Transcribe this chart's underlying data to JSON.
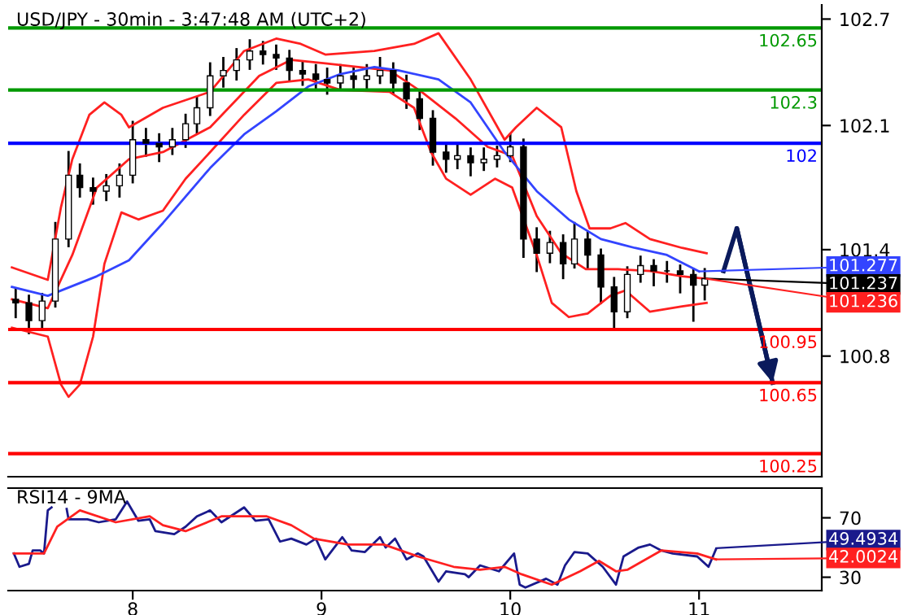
{
  "chart_data": [
    {
      "type": "candlestick",
      "title": "USD/JPY - 30min - 3:47:48 AM (UTC+2)",
      "color": "#000000",
      "x": [
        7.38,
        7.45,
        7.52,
        7.59,
        7.66,
        7.72,
        7.79,
        7.86,
        7.93,
        8.0,
        8.07,
        8.14,
        8.21,
        8.28,
        8.34,
        8.41,
        8.48,
        8.55,
        8.62,
        8.69,
        8.76,
        8.83,
        8.9,
        8.97,
        9.03,
        9.1,
        9.17,
        9.24,
        9.31,
        9.38,
        9.45,
        9.52,
        9.59,
        9.66,
        9.72,
        9.79,
        9.86,
        9.93,
        10.0,
        10.07,
        10.14,
        10.21,
        10.28,
        10.34,
        10.41,
        10.48,
        10.55,
        10.62,
        10.69,
        10.76,
        10.83,
        10.9,
        10.97,
        11.03
      ],
      "ohlc": [
        [
          101.12,
          101.18,
          101.02,
          101.1
        ],
        [
          101.1,
          101.14,
          100.93,
          101.0
        ],
        [
          101.0,
          101.15,
          100.96,
          101.11
        ],
        [
          101.11,
          101.55,
          101.08,
          101.46
        ],
        [
          101.46,
          101.95,
          101.42,
          101.82
        ],
        [
          101.82,
          101.88,
          101.7,
          101.75
        ],
        [
          101.75,
          101.8,
          101.66,
          101.73
        ],
        [
          101.73,
          101.82,
          101.68,
          101.76
        ],
        [
          101.76,
          101.88,
          101.7,
          101.82
        ],
        [
          101.82,
          102.12,
          101.78,
          102.02
        ],
        [
          102.02,
          102.08,
          101.93,
          102.0
        ],
        [
          102.0,
          102.05,
          101.9,
          101.98
        ],
        [
          101.98,
          102.08,
          101.94,
          102.02
        ],
        [
          102.02,
          102.16,
          101.98,
          102.11
        ],
        [
          102.11,
          102.26,
          102.06,
          102.2
        ],
        [
          102.2,
          102.45,
          102.16,
          102.38
        ],
        [
          102.38,
          102.48,
          102.32,
          102.41
        ],
        [
          102.41,
          102.53,
          102.36,
          102.47
        ],
        [
          102.47,
          102.58,
          102.42,
          102.52
        ],
        [
          102.52,
          102.57,
          102.45,
          102.5
        ],
        [
          102.5,
          102.55,
          102.42,
          102.48
        ],
        [
          102.48,
          102.52,
          102.36,
          102.41
        ],
        [
          102.41,
          102.46,
          102.33,
          102.39
        ],
        [
          102.39,
          102.44,
          102.3,
          102.36
        ],
        [
          102.36,
          102.42,
          102.28,
          102.34
        ],
        [
          102.34,
          102.44,
          102.3,
          102.38
        ],
        [
          102.38,
          102.42,
          102.3,
          102.36
        ],
        [
          102.36,
          102.44,
          102.31,
          102.38
        ],
        [
          102.38,
          102.48,
          102.34,
          102.41
        ],
        [
          102.41,
          102.45,
          102.28,
          102.34
        ],
        [
          102.34,
          102.38,
          102.2,
          102.25
        ],
        [
          102.25,
          102.3,
          102.08,
          102.14
        ],
        [
          102.14,
          102.18,
          101.88,
          101.95
        ],
        [
          101.95,
          102.0,
          101.84,
          101.91
        ],
        [
          101.91,
          101.99,
          101.86,
          101.93
        ],
        [
          101.93,
          101.97,
          101.82,
          101.89
        ],
        [
          101.89,
          101.97,
          101.85,
          101.91
        ],
        [
          101.91,
          101.98,
          101.87,
          101.93
        ],
        [
          101.93,
          102.05,
          101.9,
          101.98
        ],
        [
          101.98,
          102.02,
          101.36,
          101.46
        ],
        [
          101.46,
          101.52,
          101.28,
          101.38
        ],
        [
          101.38,
          101.5,
          101.33,
          101.44
        ],
        [
          101.44,
          101.48,
          101.24,
          101.32
        ],
        [
          101.32,
          101.55,
          101.3,
          101.46
        ],
        [
          101.46,
          101.5,
          101.3,
          101.37
        ],
        [
          101.37,
          101.4,
          101.1,
          101.19
        ],
        [
          101.19,
          101.24,
          100.95,
          101.05
        ],
        [
          101.05,
          101.3,
          101.02,
          101.26
        ],
        [
          101.26,
          101.36,
          101.22,
          101.31
        ],
        [
          101.31,
          101.34,
          101.2,
          101.28
        ],
        [
          101.28,
          101.33,
          101.22,
          101.28
        ],
        [
          101.28,
          101.31,
          101.16,
          101.26
        ],
        [
          101.26,
          101.29,
          101.0,
          101.2
        ],
        [
          101.2,
          101.29,
          101.12,
          101.237
        ]
      ],
      "series": [
        {
          "type": "line",
          "color": "#ff2020",
          "x": [
            7.36,
            7.55,
            7.62,
            7.68,
            7.77,
            7.85,
            7.94,
            7.98,
            8.16,
            8.41,
            8.59,
            8.76,
            8.89,
            9.02,
            9.28,
            9.49,
            9.62,
            9.79,
            9.97,
            10.03,
            10.14,
            10.27,
            10.35,
            10.42,
            10.53,
            10.61,
            10.74,
            10.91,
            11.04
          ],
          "values": [
            101.3,
            101.23,
            101.64,
            101.91,
            102.16,
            102.23,
            102.16,
            102.09,
            102.2,
            102.29,
            102.52,
            102.59,
            102.56,
            102.5,
            102.52,
            102.56,
            102.62,
            102.36,
            102.02,
            102.09,
            102.2,
            102.09,
            101.73,
            101.52,
            101.52,
            101.55,
            101.46,
            101.41,
            101.38
          ]
        },
        {
          "type": "line",
          "color": "#ff2020",
          "x": [
            7.36,
            7.55,
            7.62,
            7.66,
            7.72,
            7.79,
            7.85,
            7.94,
            8.03,
            8.16,
            8.28,
            8.41,
            8.59,
            8.76,
            8.93,
            9.1,
            9.36,
            9.49,
            9.58,
            9.66,
            9.79,
            9.92,
            10.01,
            10.14,
            10.22,
            10.31,
            10.41,
            10.53,
            10.61,
            10.74,
            10.91,
            11.04
          ],
          "values": [
            100.96,
            100.91,
            100.64,
            100.57,
            100.64,
            100.91,
            101.32,
            101.61,
            101.57,
            101.62,
            101.8,
            101.95,
            102.16,
            102.34,
            102.36,
            102.3,
            102.29,
            102.2,
            101.95,
            101.8,
            101.71,
            101.8,
            101.75,
            101.37,
            101.1,
            101.02,
            101.04,
            101.14,
            101.17,
            101.05,
            101.08,
            101.1
          ]
        },
        {
          "type": "line",
          "color": "#ff2020",
          "x": [
            7.36,
            7.55,
            7.68,
            7.81,
            7.98,
            8.16,
            8.41,
            8.67,
            8.84,
            9.02,
            9.36,
            9.53,
            9.71,
            9.88,
            10.01,
            10.14,
            10.27,
            10.4,
            10.57,
            10.74,
            10.91,
            11.04
          ],
          "values": [
            101.12,
            101.07,
            101.37,
            101.75,
            101.91,
            101.95,
            102.09,
            102.38,
            102.47,
            102.45,
            102.41,
            102.29,
            102.14,
            101.98,
            101.93,
            101.59,
            101.38,
            101.29,
            101.29,
            101.28,
            101.25,
            101.236
          ]
        },
        {
          "type": "line",
          "color": "#3344ff",
          "x": [
            7.36,
            7.55,
            7.81,
            7.98,
            8.16,
            8.41,
            8.59,
            8.76,
            8.93,
            9.1,
            9.28,
            9.41,
            9.62,
            9.79,
            9.97,
            10.14,
            10.31,
            10.48,
            10.66,
            10.83,
            11.0
          ],
          "values": [
            101.19,
            101.14,
            101.25,
            101.34,
            101.55,
            101.86,
            102.05,
            102.18,
            102.32,
            102.39,
            102.43,
            102.41,
            102.36,
            102.23,
            101.95,
            101.73,
            101.57,
            101.46,
            101.41,
            101.37,
            101.277
          ]
        },
        {
          "type": "line",
          "color": "#0a1a5c",
          "x": [
            11.13,
            11.2,
            11.39
          ],
          "values": [
            101.28,
            101.52,
            100.65
          ]
        }
      ],
      "ref_lines": [
        {
          "axis": "y",
          "value": 102.65,
          "label": "102.65",
          "color": "#009900"
        },
        {
          "axis": "y",
          "value": 102.3,
          "label": "102.3",
          "color": "#009900"
        },
        {
          "axis": "y",
          "value": 102,
          "label": "102",
          "color": "#0000ff"
        },
        {
          "axis": "y",
          "value": 100.95,
          "label": "100.95",
          "color": "#ff0000"
        },
        {
          "axis": "y",
          "value": 100.65,
          "label": "100.65",
          "color": "#ff0000"
        },
        {
          "axis": "y",
          "value": 100.25,
          "label": "100.25",
          "color": "#ff0000"
        }
      ],
      "annotations": [
        {
          "text": "101.277",
          "x": 11.0,
          "y": 101.277
        },
        {
          "text": "101.237",
          "x": 11.03,
          "y": 101.237
        },
        {
          "text": "101.236",
          "x": 11.04,
          "y": 101.236
        }
      ],
      "xlim": [
        7.34,
        11.65
      ],
      "ylim": [
        100.12,
        102.78
      ],
      "yticks": [
        102.7,
        102.1,
        101.4,
        100.8
      ],
      "tick_labels": "y",
      "grid": false,
      "legend": false
    },
    {
      "type": "line",
      "title": "RSI14 - 9MA",
      "series": [
        {
          "color": "#1a1a8c",
          "x": [
            7.37,
            7.4,
            7.45,
            7.47,
            7.51,
            7.53,
            7.55,
            7.57,
            7.6,
            7.65,
            7.66,
            7.76,
            7.82,
            7.91,
            7.97,
            8.03,
            8.09,
            8.12,
            8.22,
            8.28,
            8.34,
            8.41,
            8.47,
            8.59,
            8.65,
            8.72,
            8.78,
            8.84,
            8.92,
            8.97,
            9.02,
            9.08,
            9.11,
            9.16,
            9.23,
            9.31,
            9.34,
            9.39,
            9.45,
            9.51,
            9.54,
            9.62,
            9.66,
            9.76,
            9.78,
            9.84,
            9.94,
            10.02,
            10.05,
            10.08,
            10.19,
            10.25,
            10.29,
            10.34,
            10.41,
            10.49,
            10.56,
            10.6,
            10.68,
            10.74,
            10.8,
            10.86,
            10.99,
            11.05,
            11.09
          ],
          "values": [
            46,
            37,
            39,
            48,
            48,
            46,
            75,
            77,
            null,
            76,
            69,
            69,
            67,
            69,
            81,
            68,
            69,
            61,
            59,
            64,
            71,
            75,
            67,
            77,
            68,
            69,
            54,
            56,
            52,
            56,
            42,
            52,
            57,
            48,
            47,
            57,
            50,
            56,
            42,
            46,
            44,
            27,
            34,
            32,
            30,
            38,
            34,
            46,
            25,
            23,
            29,
            25,
            38,
            47,
            46,
            37,
            25,
            44,
            50,
            52,
            48,
            46,
            44,
            37,
            49
          ]
        },
        {
          "color": "#ff2020",
          "x": [
            7.37,
            7.53,
            7.6,
            7.72,
            7.91,
            8.09,
            8.16,
            8.28,
            8.47,
            8.71,
            8.84,
            8.96,
            9.14,
            9.33,
            9.51,
            9.7,
            9.84,
            9.97,
            10.06,
            10.22,
            10.37,
            10.47,
            10.56,
            10.62,
            10.8,
            10.99,
            11.09
          ],
          "values": [
            46,
            46,
            64,
            75,
            67,
            71,
            65,
            61,
            71,
            71,
            65,
            56,
            52,
            52,
            44,
            37,
            35,
            37,
            32,
            25,
            34,
            41,
            34,
            35,
            48,
            46,
            42
          ]
        }
      ],
      "annotations": [
        {
          "text": "49.4934",
          "x": 11.09,
          "y": 49.4934
        },
        {
          "text": "42.0024",
          "x": 11.09,
          "y": 42.0024
        }
      ],
      "xlim": [
        7.34,
        11.65
      ],
      "xticks": [
        8,
        9,
        10,
        11
      ],
      "ylim": [
        21,
        90
      ],
      "yticks": [
        70,
        30
      ],
      "grid": false,
      "legend": false
    }
  ]
}
